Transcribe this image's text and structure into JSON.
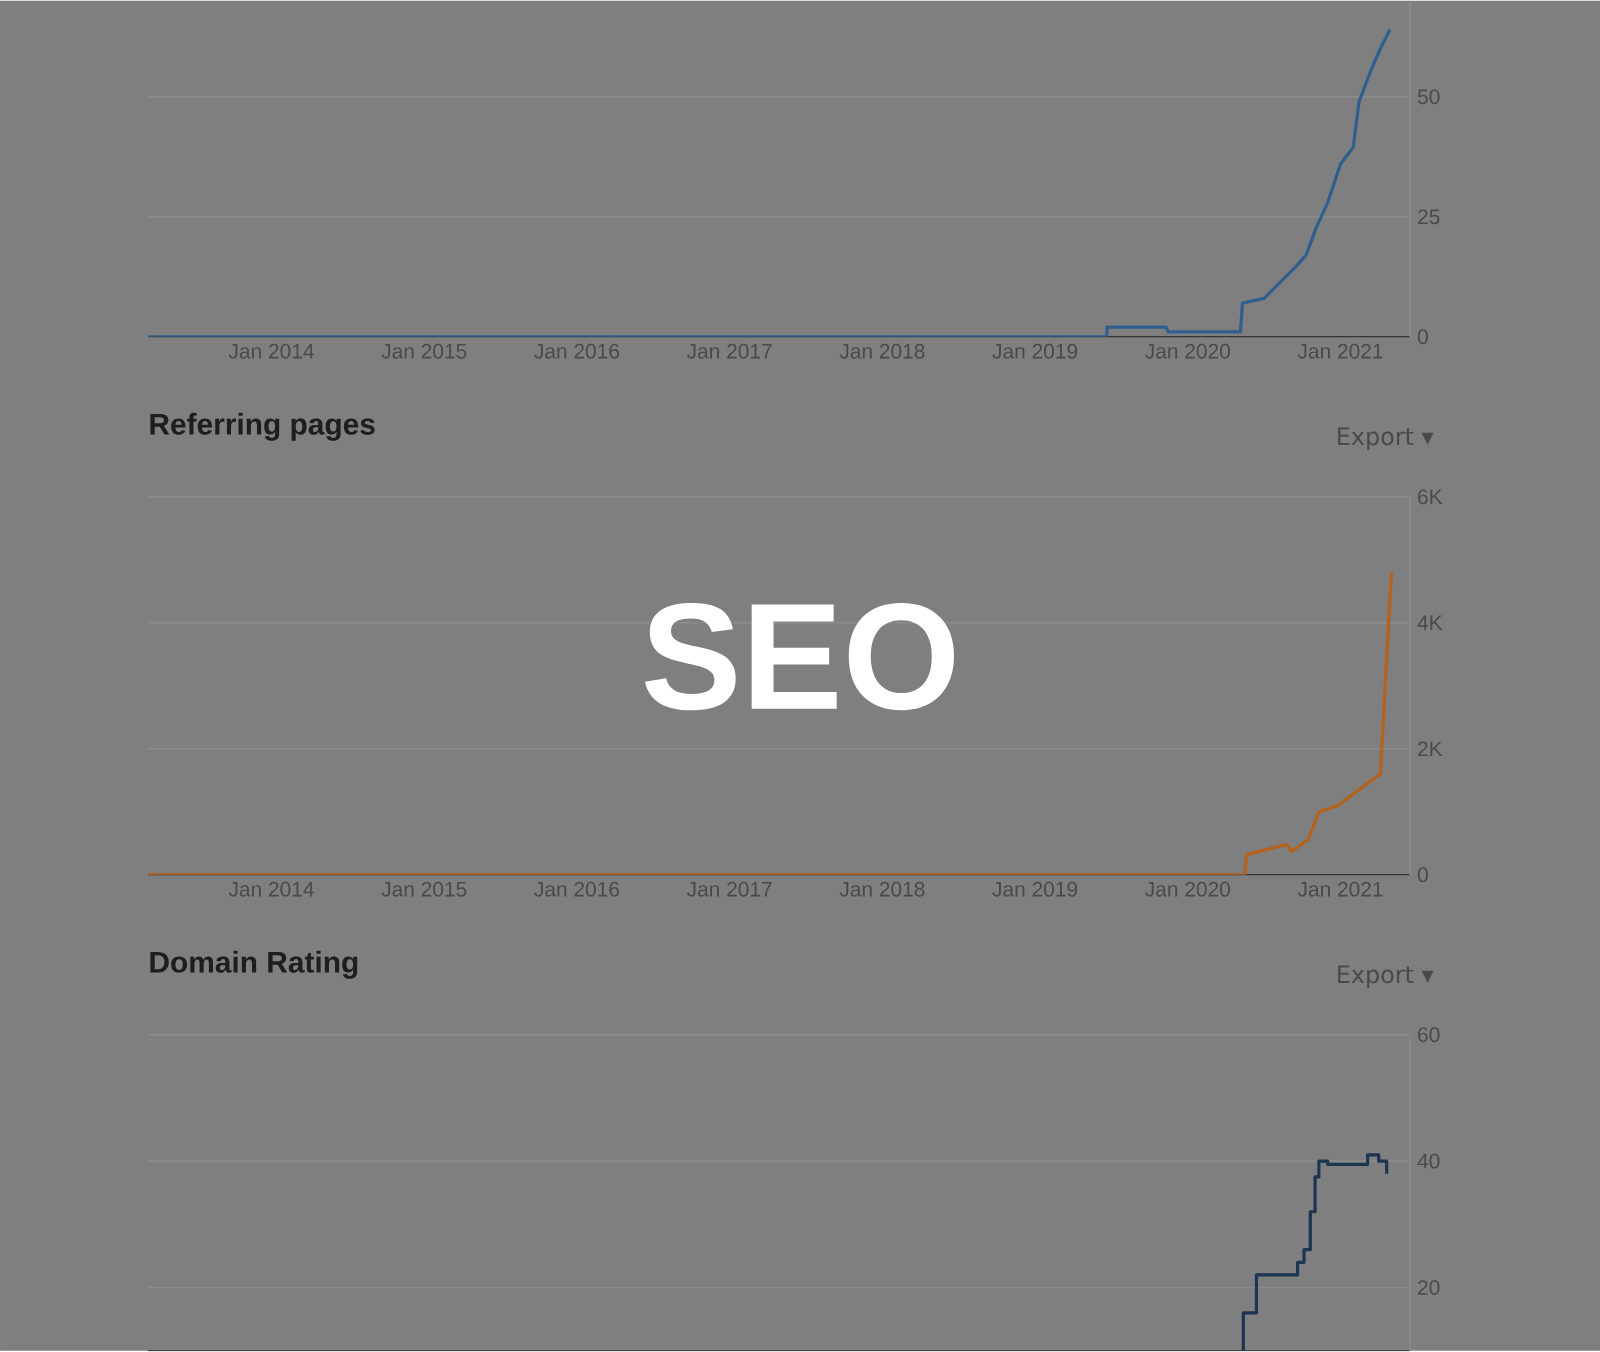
{
  "chart_data": [
    {
      "type": "line",
      "color": "#2f5f8e",
      "grid": "y",
      "x": [
        "2013-03-10",
        "2019-06-20",
        "2019-06-21",
        "2019-11-10",
        "2019-11-15",
        "2020-05-05",
        "2020-05-10",
        "2020-07-01",
        "2020-08-05",
        "2020-09-15",
        "2020-10-10",
        "2020-11-05",
        "2020-12-01",
        "2021-01-01",
        "2021-02-01",
        "2021-02-15",
        "2021-03-15",
        "2021-04-05",
        "2021-04-28"
      ],
      "values": [
        0,
        0,
        2,
        2,
        1,
        1,
        7,
        8,
        11,
        14.5,
        17,
        23,
        28,
        36,
        39.5,
        49,
        56,
        60,
        64
      ],
      "xlim": [
        "2013-03-10",
        "2021-06-15"
      ],
      "ylim": [
        0,
        70
      ],
      "yticks": [
        0,
        25,
        50
      ],
      "xticks": [
        {
          "value": "2014-01-01",
          "label": "Jan 2014"
        },
        {
          "value": "2015-01-01",
          "label": "Jan 2015"
        },
        {
          "value": "2016-01-01",
          "label": "Jan 2016"
        },
        {
          "value": "2017-01-01",
          "label": "Jan 2017"
        },
        {
          "value": "2018-01-01",
          "label": "Jan 2018"
        },
        {
          "value": "2019-01-01",
          "label": "Jan 2019"
        },
        {
          "value": "2020-01-01",
          "label": "Jan 2020"
        },
        {
          "value": "2021-01-01",
          "label": "Jan 2021"
        }
      ]
    },
    {
      "type": "line",
      "title": "Referring pages",
      "color": "#b5621c",
      "grid": "y",
      "annotations": [
        "Export ▾",
        "SEO"
      ],
      "x": [
        "2013-03-10",
        "2020-05-15",
        "2020-05-20",
        "2020-08-25",
        "2020-09-05",
        "2020-10-15",
        "2020-11-10",
        "2020-12-25",
        "2021-03-15",
        "2021-04-05",
        "2021-05-01"
      ],
      "values": [
        0,
        0,
        320,
        480,
        370,
        560,
        1000,
        1100,
        1500,
        1600,
        4800
      ],
      "xlim": [
        "2013-03-10",
        "2021-06-15"
      ],
      "ylim": [
        0,
        6000
      ],
      "yticks": [
        0,
        {
          "value": 2000,
          "label": "2K"
        },
        {
          "value": 4000,
          "label": "4K"
        },
        {
          "value": 6000,
          "label": "6K"
        }
      ],
      "xticks": [
        {
          "value": "2014-01-01",
          "label": "Jan 2014"
        },
        {
          "value": "2015-01-01",
          "label": "Jan 2015"
        },
        {
          "value": "2016-01-01",
          "label": "Jan 2016"
        },
        {
          "value": "2017-01-01",
          "label": "Jan 2017"
        },
        {
          "value": "2018-01-01",
          "label": "Jan 2018"
        },
        {
          "value": "2019-01-01",
          "label": "Jan 2019"
        },
        {
          "value": "2020-01-01",
          "label": "Jan 2020"
        },
        {
          "value": "2021-01-01",
          "label": "Jan 2021"
        }
      ]
    },
    {
      "type": "step",
      "title": "Domain Rating",
      "color": "#1c3550",
      "grid": "y",
      "tick_labels": "y",
      "annotations": [
        "Export ▾"
      ],
      "x": [
        "2020-05-10",
        "2020-05-12",
        "2020-06-13",
        "2020-09-20",
        "2020-10-05",
        "2020-10-20",
        "2020-11-01",
        "2020-11-10",
        "2020-12-01",
        "2021-03-05",
        "2021-04-01",
        "2021-04-20"
      ],
      "values": [
        10,
        16,
        22,
        24,
        26,
        32,
        37.5,
        40,
        39.5,
        41,
        40,
        38
      ],
      "xlim": [
        "2013-03-10",
        "2021-06-15"
      ],
      "ylim": [
        10,
        60
      ],
      "yticks": [
        20,
        40,
        60
      ]
    }
  ]
}
